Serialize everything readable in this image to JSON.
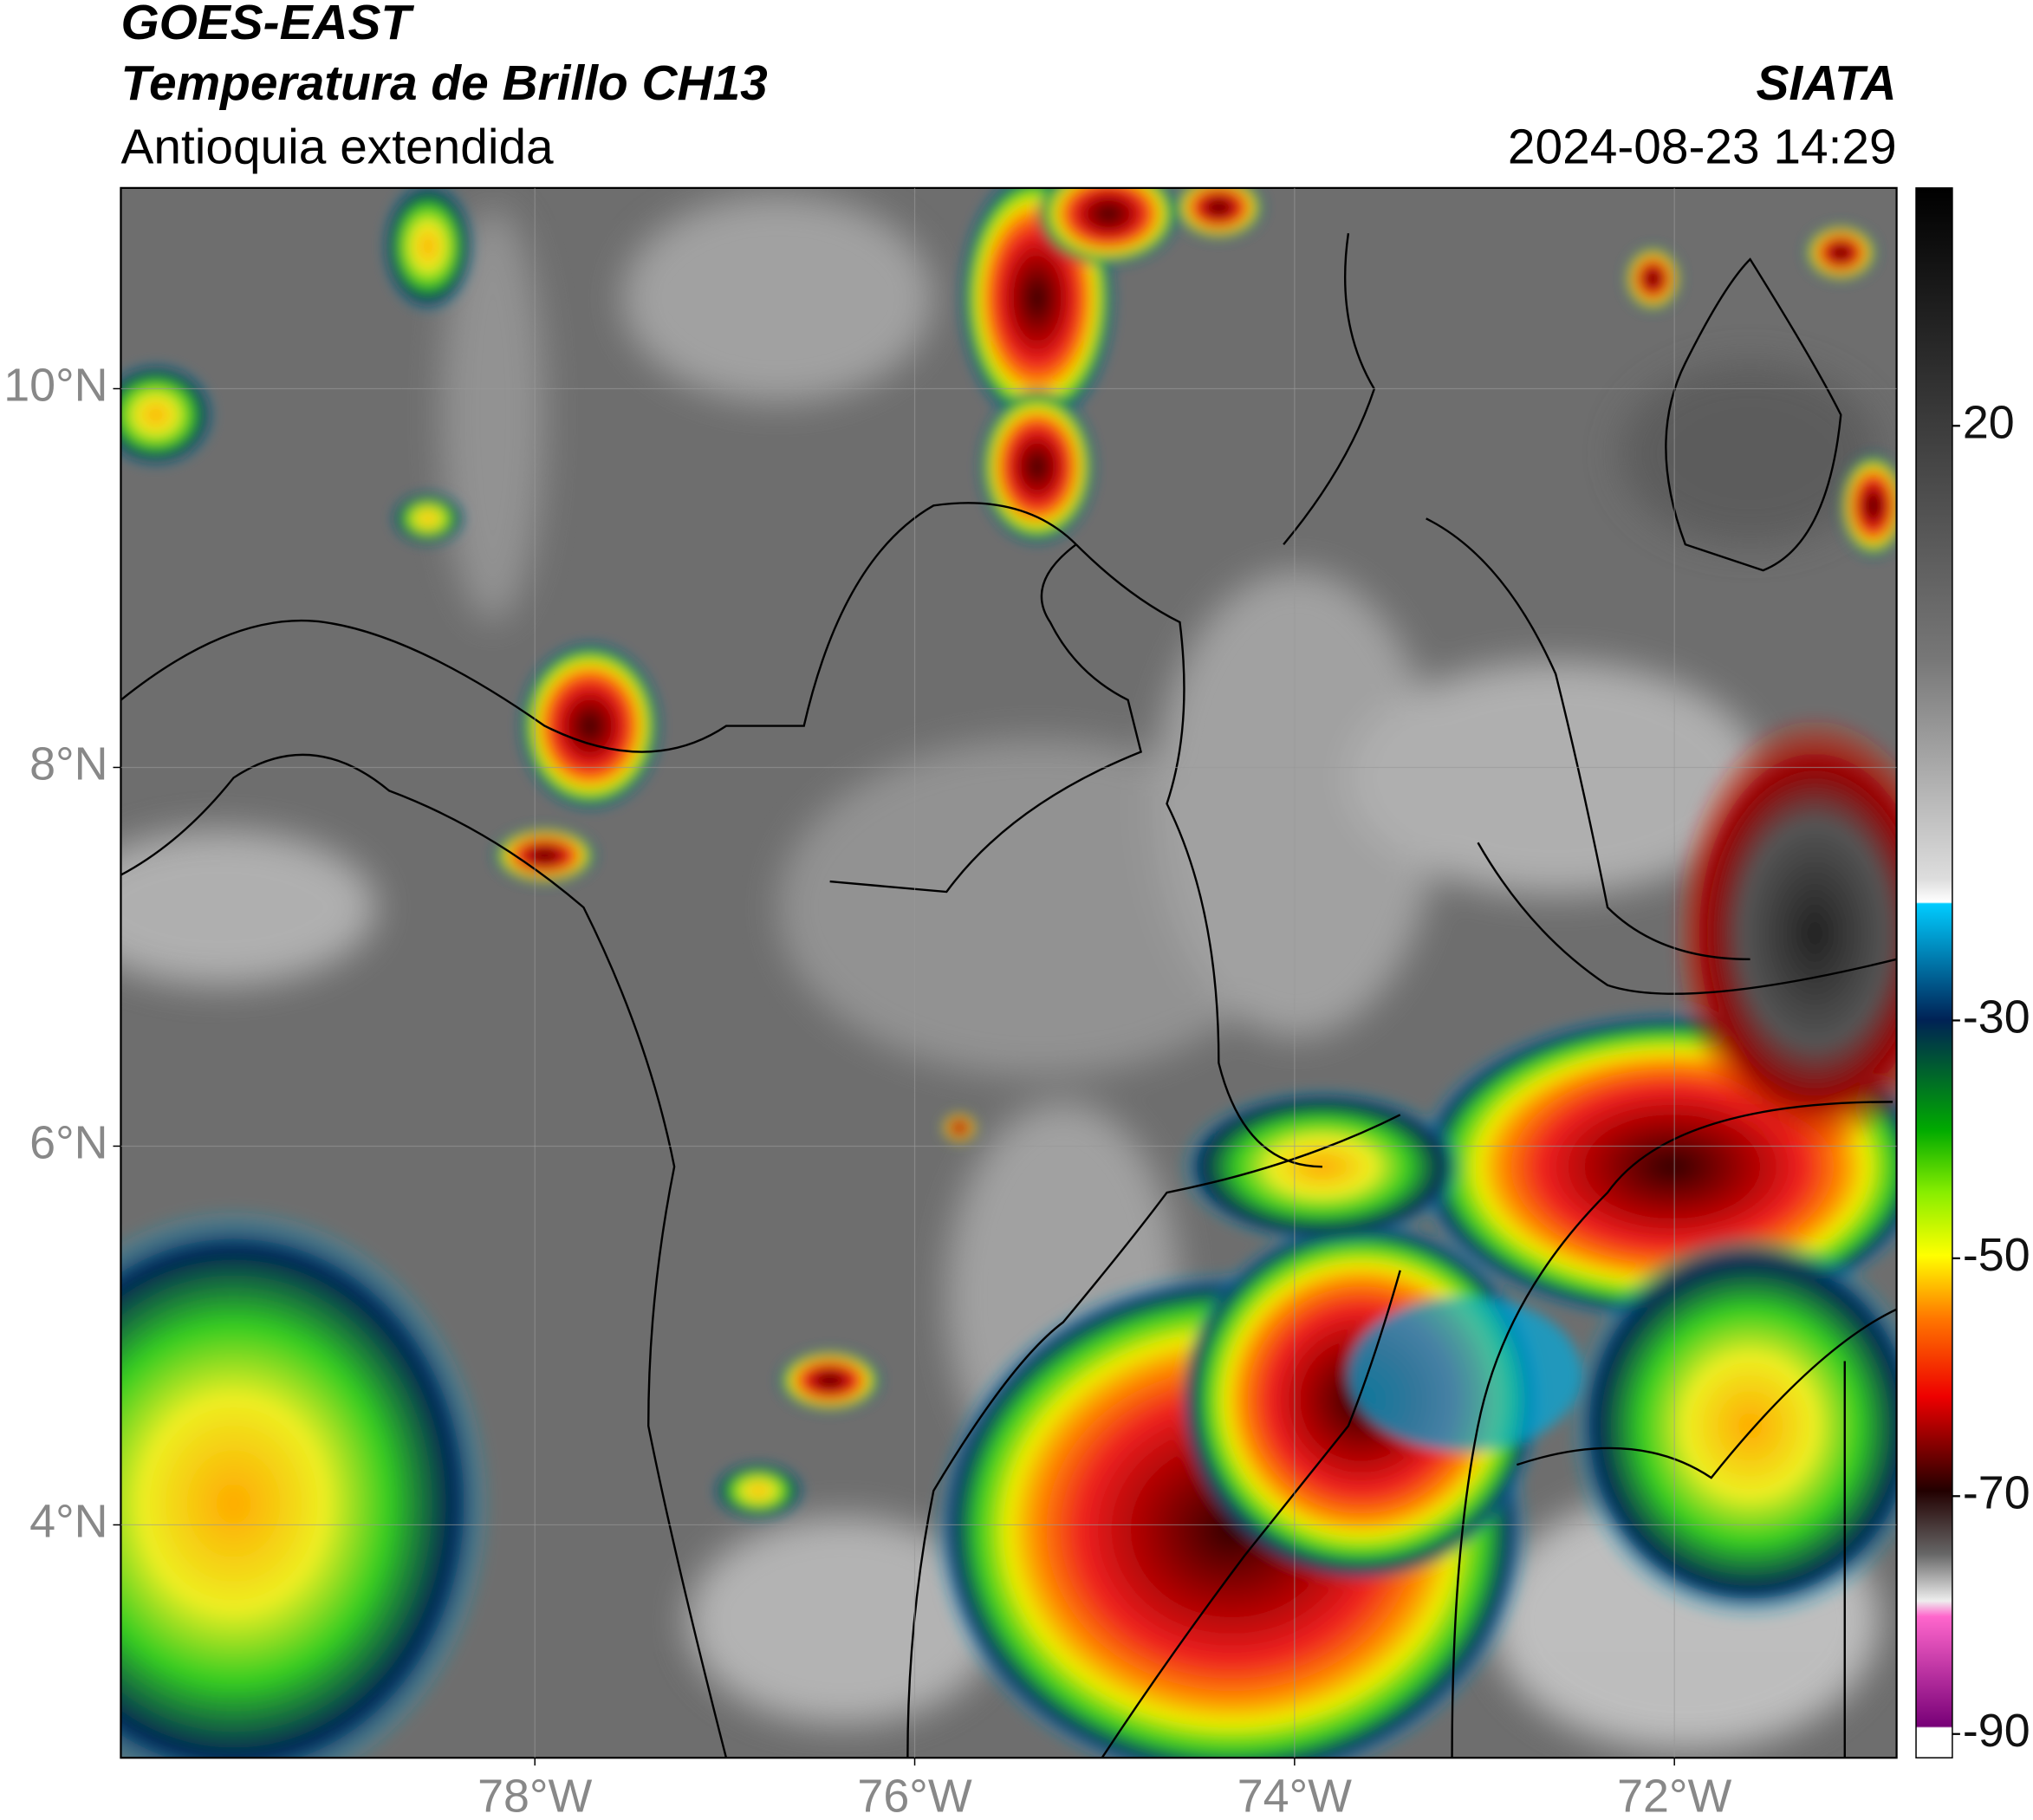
{
  "header": {
    "title": "GOES-EAST",
    "subtitle": "Temperatura de Brillo CH13",
    "region": "Antioquia extendida",
    "source": "SIATA",
    "timestamp": "2024-08-23 14:29"
  },
  "map": {
    "xlim": [
      -80.18,
      -70.83
    ],
    "ylim": [
      2.77,
      11.06
    ],
    "xticks": [
      {
        "value": -78,
        "label": "78°W"
      },
      {
        "value": -76,
        "label": "76°W"
      },
      {
        "value": -74,
        "label": "74°W"
      },
      {
        "value": -72,
        "label": "72°W"
      }
    ],
    "yticks": [
      {
        "value": 10,
        "label": "10°N"
      },
      {
        "value": 8,
        "label": "8°N"
      },
      {
        "value": 6,
        "label": "6°N"
      },
      {
        "value": 4,
        "label": "4°N"
      }
    ],
    "grid": true
  },
  "colorbar": {
    "lim": [
      -92,
      40
    ],
    "ticks": [
      20,
      -30,
      -50,
      -70,
      -90
    ]
  }
}
